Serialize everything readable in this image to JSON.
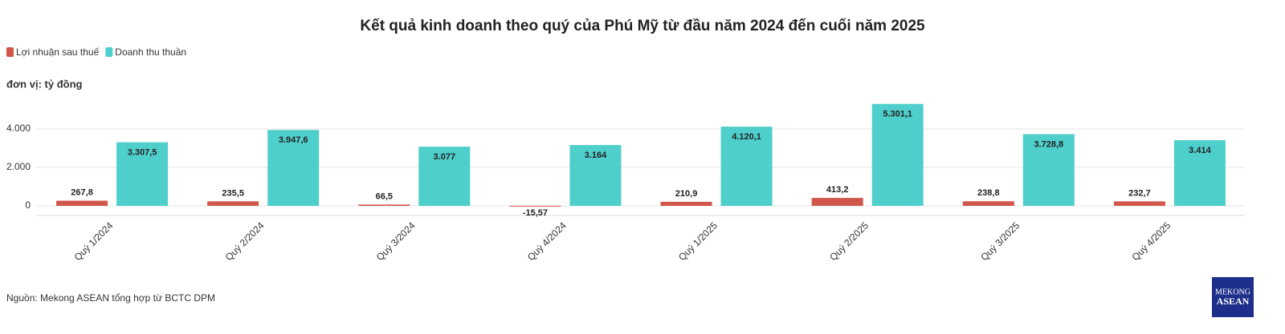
{
  "chart_data": {
    "type": "bar",
    "title": "Kết quả kinh doanh theo quý của Phú Mỹ từ đầu năm 2024 đến cuối năm 2025",
    "unit_label": "đơn vị: tỷ đồng",
    "source": "Nguồn: Mekong ASEAN tổng hợp từ BCTC DPM",
    "logo": [
      "MEKONG",
      "ASEAN"
    ],
    "categories": [
      "Quý 1/2024",
      "Quý 2/2024",
      "Quý 3/2024",
      "Quý 4/2024",
      "Quý 1/2025",
      "Quý 2/2025",
      "Quý 3/2025",
      "Quý 4/2025"
    ],
    "series": [
      {
        "name": "Lợi nhuận sau thuế",
        "color": "#d0574a",
        "values": [
          267.8,
          235.5,
          66.5,
          -15.57,
          210.9,
          413.2,
          238.8,
          232.7
        ],
        "value_labels": [
          "267,8",
          "235,5",
          "66,5",
          "-15,57",
          "210,9",
          "413,2",
          "238,8",
          "232,7"
        ]
      },
      {
        "name": "Doanh thu thuần",
        "color": "#4ecfcc",
        "values": [
          3307.5,
          3947.6,
          3077,
          3164,
          4120.1,
          5301.1,
          3728.8,
          3414
        ],
        "value_labels": [
          "3.307,5",
          "3.947,6",
          "3.077",
          "3.164",
          "4.120,1",
          "5.301,1",
          "3.728,8",
          "3.414"
        ]
      }
    ],
    "ylim": [
      -500,
      5500
    ],
    "yticks": [
      0,
      {
        "value": 2000,
        "label": "2.000"
      },
      {
        "value": 4000,
        "label": "4.000"
      }
    ],
    "grid": true,
    "legend": "top-left"
  }
}
